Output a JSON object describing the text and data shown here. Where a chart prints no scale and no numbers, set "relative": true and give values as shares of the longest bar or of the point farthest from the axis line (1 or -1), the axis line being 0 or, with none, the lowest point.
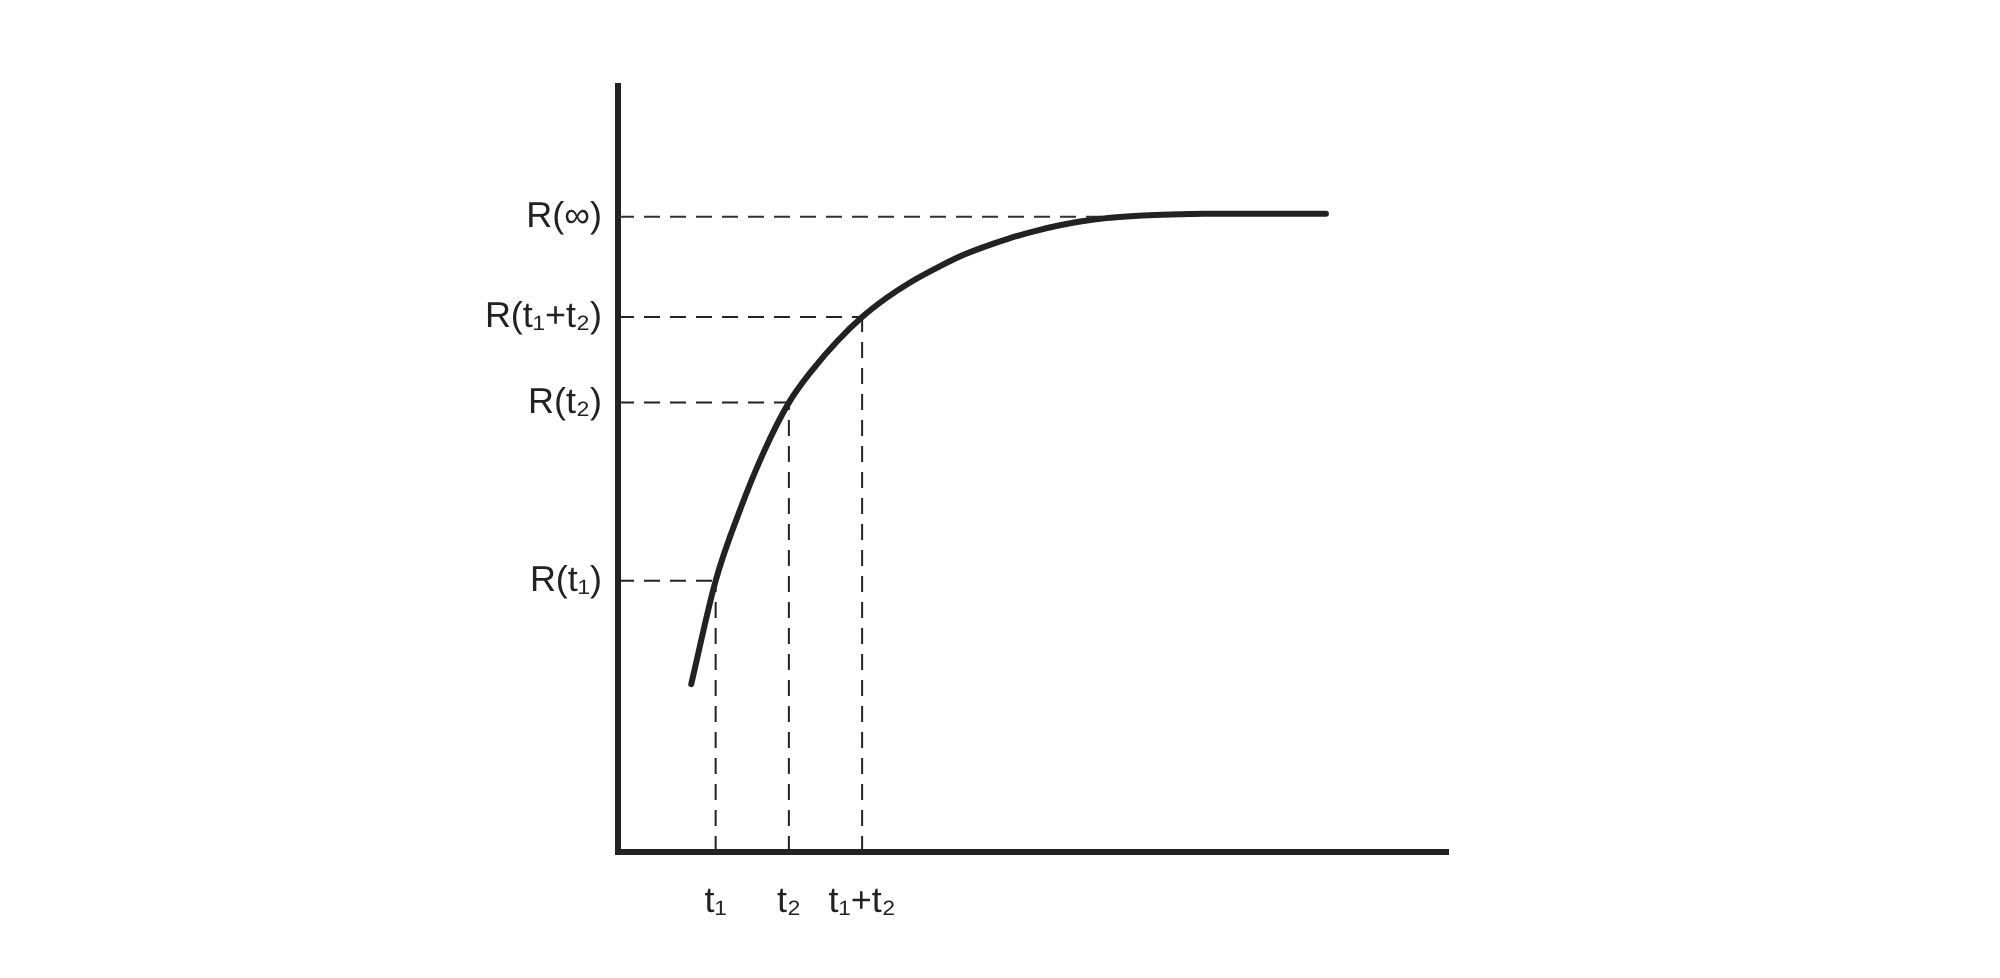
{
  "chart_data": {
    "type": "line",
    "relative": true,
    "categories": [
      null,
      null,
      null,
      null,
      "t₁",
      null,
      null,
      "t₂",
      null,
      null,
      "t₁+t₂",
      null,
      null,
      null,
      null,
      null,
      null,
      null,
      null,
      null,
      null,
      null,
      null,
      null,
      null,
      null,
      null,
      null,
      null,
      null,
      null,
      null,
      null,
      null,
      null
    ],
    "series": [
      {
        "color": "#222222",
        "values": [
          null,
          null,
          null,
          0.263,
          0.425,
          0.536,
          0.629,
          0.704,
          0.757,
          0.801,
          0.838,
          0.868,
          0.893,
          0.914,
          0.933,
          0.948,
          0.961,
          0.972,
          0.981,
          0.988,
          0.993,
          0.996,
          0.998,
          0.999,
          1,
          1,
          1,
          1,
          1,
          1,
          null,
          null,
          null,
          null,
          null
        ]
      }
    ],
    "ref_lines": [
      {
        "axis": "y",
        "value": 0.425,
        "label": "R(t₁)",
        "line_style": "dashed"
      },
      {
        "axis": "y",
        "value": 0.704,
        "label": "R(t₂)",
        "line_style": "dashed"
      },
      {
        "axis": "y",
        "value": 0.838,
        "label": "R(t₁+t₂)",
        "line_style": "dashed"
      },
      {
        "axis": "y",
        "value": 0.995,
        "label": "R(∞)",
        "line_style": "dashed",
        "color": "#333333"
      },
      {
        "axis": "x",
        "value": "t₁",
        "line_style": "dashed"
      },
      {
        "axis": "x",
        "value": "t₂",
        "line_style": "dashed"
      },
      {
        "axis": "x",
        "value": "t₁+t₂",
        "line_style": "dashed"
      }
    ],
    "legend": false,
    "marker": "none",
    "line_style": "solid"
  }
}
